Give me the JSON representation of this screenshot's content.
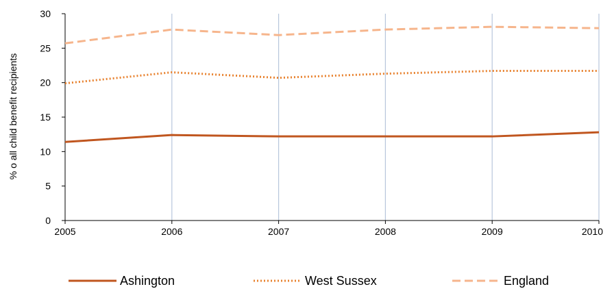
{
  "chart_data": {
    "type": "line",
    "title": "",
    "xlabel": "",
    "ylabel": "% o all child benefit recipients",
    "x": [
      "2005",
      "2006",
      "2007",
      "2008",
      "2009",
      "2010"
    ],
    "ylim": [
      0,
      30
    ],
    "yticks": [
      "0",
      "5",
      "10",
      "15",
      "20",
      "25",
      "30"
    ],
    "grid": "vertical",
    "legend_position": "bottom",
    "series": [
      {
        "name": "Ashington",
        "values": [
          11.4,
          12.4,
          12.2,
          12.2,
          12.2,
          12.8
        ],
        "color": "#c0561f",
        "style": "solid"
      },
      {
        "name": "West Sussex",
        "values": [
          19.9,
          21.5,
          20.7,
          21.3,
          21.7,
          21.7
        ],
        "color": "#e8822f",
        "style": "dotted"
      },
      {
        "name": "England",
        "values": [
          25.7,
          27.7,
          26.9,
          27.7,
          28.1,
          27.9
        ],
        "color": "#f6b58c",
        "style": "dashed"
      }
    ]
  }
}
